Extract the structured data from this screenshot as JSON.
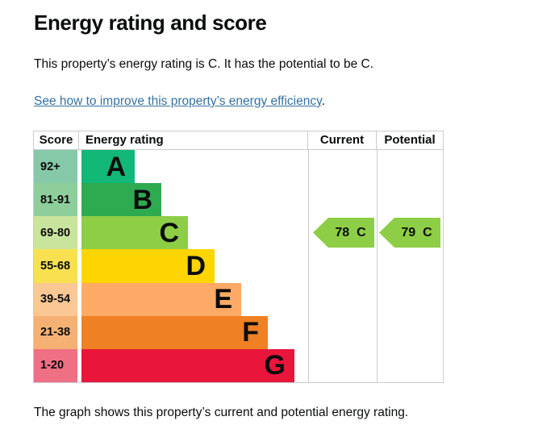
{
  "page": {
    "title": "Energy rating and score",
    "intro": "This property’s energy rating is C. It has the potential to be C.",
    "link_text": "See how to improve this property’s energy efficiency",
    "link_suffix": ".",
    "footer": "The graph shows this property’s current and potential energy rating."
  },
  "chart": {
    "headers": {
      "score": "Score",
      "rating": "Energy rating",
      "current": "Current",
      "potential": "Potential"
    },
    "bands": [
      {
        "letter": "A",
        "score_range": "92+",
        "color": "#12b877",
        "tint": "#85c9a8"
      },
      {
        "letter": "B",
        "score_range": "81-91",
        "color": "#2eaa50",
        "tint": "#8dce9a"
      },
      {
        "letter": "C",
        "score_range": "69-80",
        "color": "#8dce46",
        "tint": "#c9e49c"
      },
      {
        "letter": "D",
        "score_range": "55-68",
        "color": "#ffd500",
        "tint": "#f9e050"
      },
      {
        "letter": "E",
        "score_range": "39-54",
        "color": "#fcaa65",
        "tint": "#fac795"
      },
      {
        "letter": "F",
        "score_range": "21-38",
        "color": "#ef8023",
        "tint": "#f4b173"
      },
      {
        "letter": "G",
        "score_range": "1-20",
        "color": "#e9153b",
        "tint": "#ef6f85"
      }
    ],
    "current": {
      "score": "78",
      "band": "C"
    },
    "potential": {
      "score": "79",
      "band": "C"
    },
    "arrow_color": "#8dce46"
  },
  "colors": {
    "text": "#0b0c0c",
    "link": "#36719f",
    "border": "#c8cbcd"
  },
  "chart_data": {
    "type": "bar",
    "title": "Energy rating and score",
    "categories": [
      "A",
      "B",
      "C",
      "D",
      "E",
      "F",
      "G"
    ],
    "score_ranges": [
      "92+",
      "81-91",
      "69-80",
      "55-68",
      "39-54",
      "21-38",
      "1-20"
    ],
    "band_colors": [
      "#12b877",
      "#2eaa50",
      "#8dce46",
      "#ffd500",
      "#fcaa65",
      "#ef8023",
      "#e9153b"
    ],
    "bar_relative_lengths": [
      1,
      1.5,
      2,
      2.5,
      3,
      3.5,
      4
    ],
    "columns": [
      "Score",
      "Energy rating",
      "Current",
      "Potential"
    ],
    "current": {
      "value": 78,
      "band": "C"
    },
    "potential": {
      "value": 79,
      "band": "C"
    },
    "legend_position": "none",
    "grid": false
  }
}
